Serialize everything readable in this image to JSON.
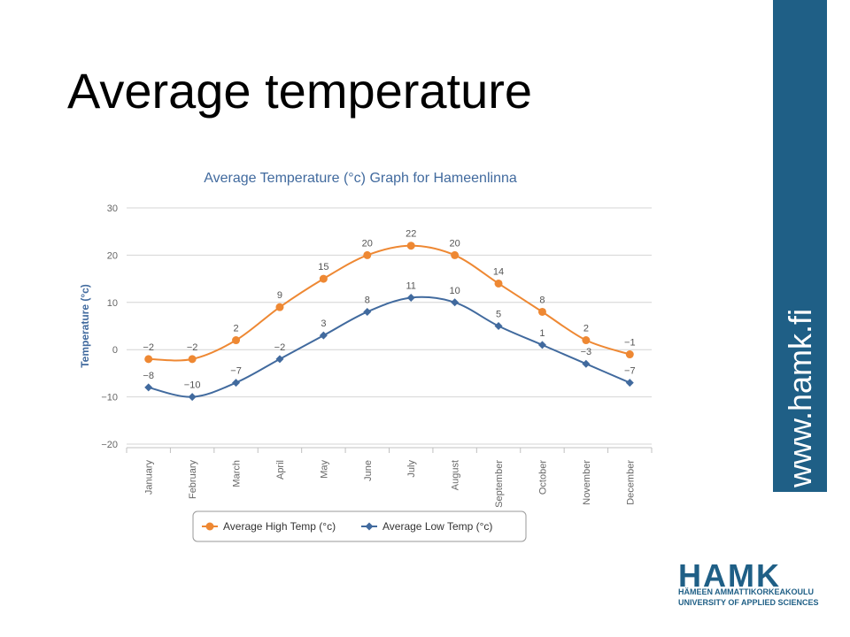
{
  "slide": {
    "title": "Average temperature",
    "side_text": "www.hamk.fi"
  },
  "logo": {
    "main": "HAMK",
    "line1": "HÄMEEN AMMATTIKORKEAKOULU",
    "line2": "UNIVERSITY OF APPLIED SCIENCES"
  },
  "colors": {
    "high": "#ee8833",
    "low": "#416a9e",
    "title": "#416a9e",
    "brand": "#1f5f86"
  },
  "chart_data": {
    "type": "line",
    "title": "Average Temperature (°c) Graph for Hameenlinna",
    "ylabel": "Temperature (°c)",
    "xlabel": "",
    "ylim": [
      -20,
      30
    ],
    "yticks": [
      30,
      20,
      10,
      0,
      -10,
      -20
    ],
    "ytick_labels": [
      "30",
      "20",
      "10",
      "0",
      "−10",
      "−20"
    ],
    "grid": true,
    "legend_position": "bottom",
    "categories": [
      "January",
      "February",
      "March",
      "April",
      "May",
      "June",
      "July",
      "August",
      "September",
      "October",
      "November",
      "December"
    ],
    "series": [
      {
        "name": "Average High Temp (°c)",
        "marker": "circle",
        "values": [
          -2,
          -2,
          2,
          9,
          15,
          20,
          22,
          20,
          14,
          8,
          2,
          -1
        ],
        "labels": [
          "−2",
          "−2",
          "2",
          "9",
          "15",
          "20",
          "22",
          "20",
          "14",
          "8",
          "2",
          "−1"
        ]
      },
      {
        "name": "Average Low Temp (°c)",
        "marker": "diamond",
        "values": [
          -8,
          -10,
          -7,
          -2,
          3,
          8,
          11,
          10,
          5,
          1,
          -3,
          -7
        ],
        "labels": [
          "−8",
          "−10",
          "−7",
          "−2",
          "3",
          "8",
          "11",
          "10",
          "5",
          "1",
          "−3",
          "−7"
        ]
      }
    ]
  }
}
